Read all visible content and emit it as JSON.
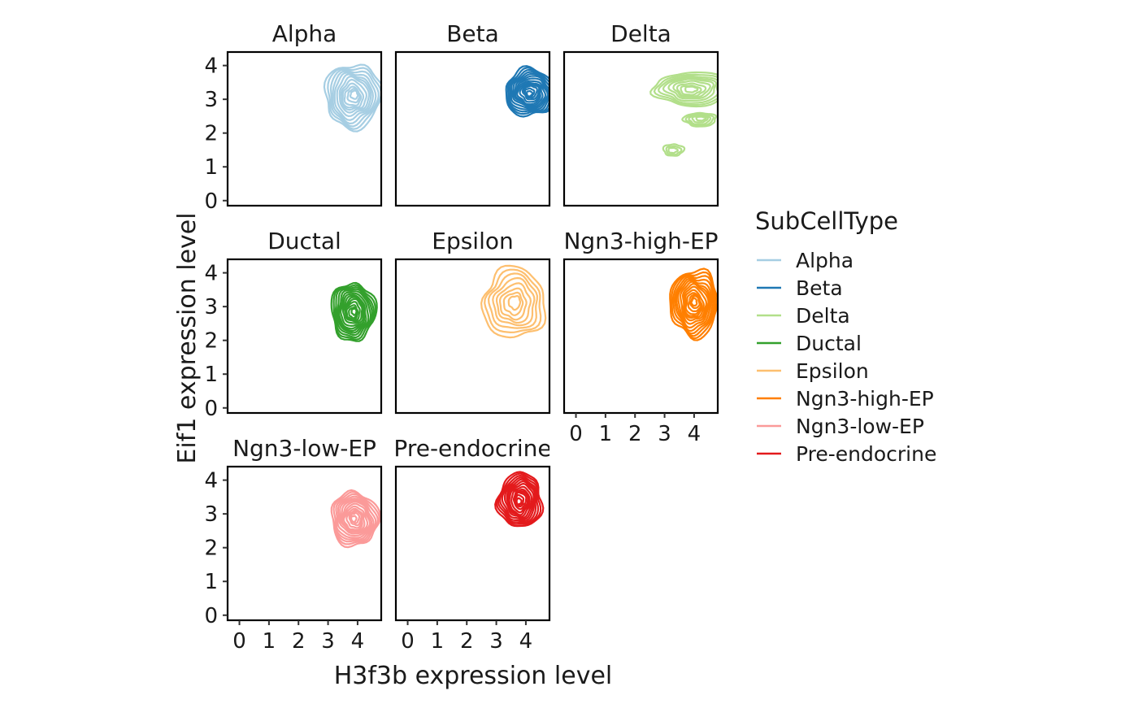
{
  "chart_data": {
    "type": "contour",
    "xlabel": "H3f3b expression level",
    "ylabel": "Eif1 expression level",
    "x_ticks": [
      0,
      1,
      2,
      3,
      4
    ],
    "y_ticks": [
      0,
      1,
      2,
      3,
      4
    ],
    "xlim": [
      -0.4,
      4.8
    ],
    "ylim": [
      -0.15,
      4.4
    ],
    "grid": false,
    "legend": {
      "title": "SubCellType",
      "position": "right",
      "entries": [
        {
          "name": "Alpha",
          "color": "#A6CEE3"
        },
        {
          "name": "Beta",
          "color": "#1F78B4"
        },
        {
          "name": "Delta",
          "color": "#B2DF8A"
        },
        {
          "name": "Ductal",
          "color": "#33A02C"
        },
        {
          "name": "Epsilon",
          "color": "#FDBF6F"
        },
        {
          "name": "Ngn3-high-EP",
          "color": "#FF7F00"
        },
        {
          "name": "Ngn3-low-EP",
          "color": "#FB9A99"
        },
        {
          "name": "Pre-endocrine",
          "color": "#E31A1C"
        }
      ]
    },
    "panels": [
      {
        "name": "Alpha",
        "strip_label": "Alpha",
        "color": "#A6CEE3",
        "clusters": [
          {
            "cx": 3.85,
            "cy": 3.1,
            "rx": 0.95,
            "ry": 0.95,
            "rings": 12
          }
        ]
      },
      {
        "name": "Beta",
        "strip_label": "Beta",
        "color": "#1F78B4",
        "clusters": [
          {
            "cx": 4.15,
            "cy": 3.2,
            "rx": 0.85,
            "ry": 0.7,
            "rings": 14
          }
        ]
      },
      {
        "name": "Delta",
        "strip_label": "Delta",
        "color": "#B2DF8A",
        "clusters": [
          {
            "cx": 3.9,
            "cy": 3.3,
            "rx": 1.25,
            "ry": 0.5,
            "rings": 9
          },
          {
            "cx": 4.2,
            "cy": 2.4,
            "rx": 0.55,
            "ry": 0.2,
            "rings": 5
          },
          {
            "cx": 3.3,
            "cy": 1.5,
            "rx": 0.35,
            "ry": 0.17,
            "rings": 3
          }
        ]
      },
      {
        "name": "Ductal",
        "strip_label": "Ductal",
        "color": "#33A02C",
        "clusters": [
          {
            "cx": 3.85,
            "cy": 2.85,
            "rx": 0.75,
            "ry": 0.85,
            "rings": 14
          }
        ]
      },
      {
        "name": "Epsilon",
        "strip_label": "Epsilon",
        "color": "#FDBF6F",
        "clusters": [
          {
            "cx": 3.6,
            "cy": 3.1,
            "rx": 1.05,
            "ry": 1.05,
            "rings": 8
          }
        ]
      },
      {
        "name": "Ngn3-high-EP",
        "strip_label": "Ngn3-high-EP",
        "color": "#FF7F00",
        "clusters": [
          {
            "cx": 4.0,
            "cy": 3.1,
            "rx": 0.8,
            "ry": 1.0,
            "rings": 14
          }
        ]
      },
      {
        "name": "Ngn3-low-EP",
        "strip_label": "Ngn3-low-EP",
        "color": "#FB9A99",
        "clusters": [
          {
            "cx": 3.9,
            "cy": 2.85,
            "rx": 0.8,
            "ry": 0.8,
            "rings": 14
          }
        ]
      },
      {
        "name": "Pre-endocrine",
        "strip_label": "Pre-endocrine",
        "color": "#E31A1C",
        "clusters": [
          {
            "cx": 3.8,
            "cy": 3.4,
            "rx": 0.75,
            "ry": 0.8,
            "rings": 14
          }
        ]
      }
    ]
  }
}
